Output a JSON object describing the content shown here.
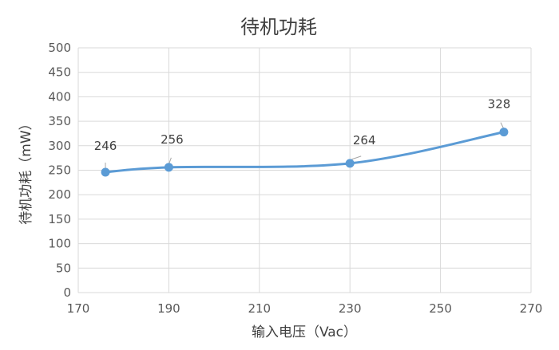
{
  "chart_data": {
    "type": "line",
    "title": "待机功耗",
    "xlabel": "输入电压（Vac）",
    "ylabel": "待机功耗（mW）",
    "xlim": [
      170,
      270
    ],
    "ylim": [
      0,
      500
    ],
    "xticks": [
      "170",
      "190",
      "210",
      "230",
      "250",
      "270"
    ],
    "yticks": [
      "0",
      "50",
      "100",
      "150",
      "200",
      "250",
      "300",
      "350",
      "400",
      "450",
      "500"
    ],
    "grid": true,
    "smooth": true,
    "color": "#5b9bd5",
    "series": [
      {
        "x": [
          176,
          190,
          230,
          264
        ],
        "values": [
          246,
          256,
          264,
          328
        ],
        "labels": [
          "246",
          "256",
          "264",
          "328"
        ]
      }
    ]
  }
}
